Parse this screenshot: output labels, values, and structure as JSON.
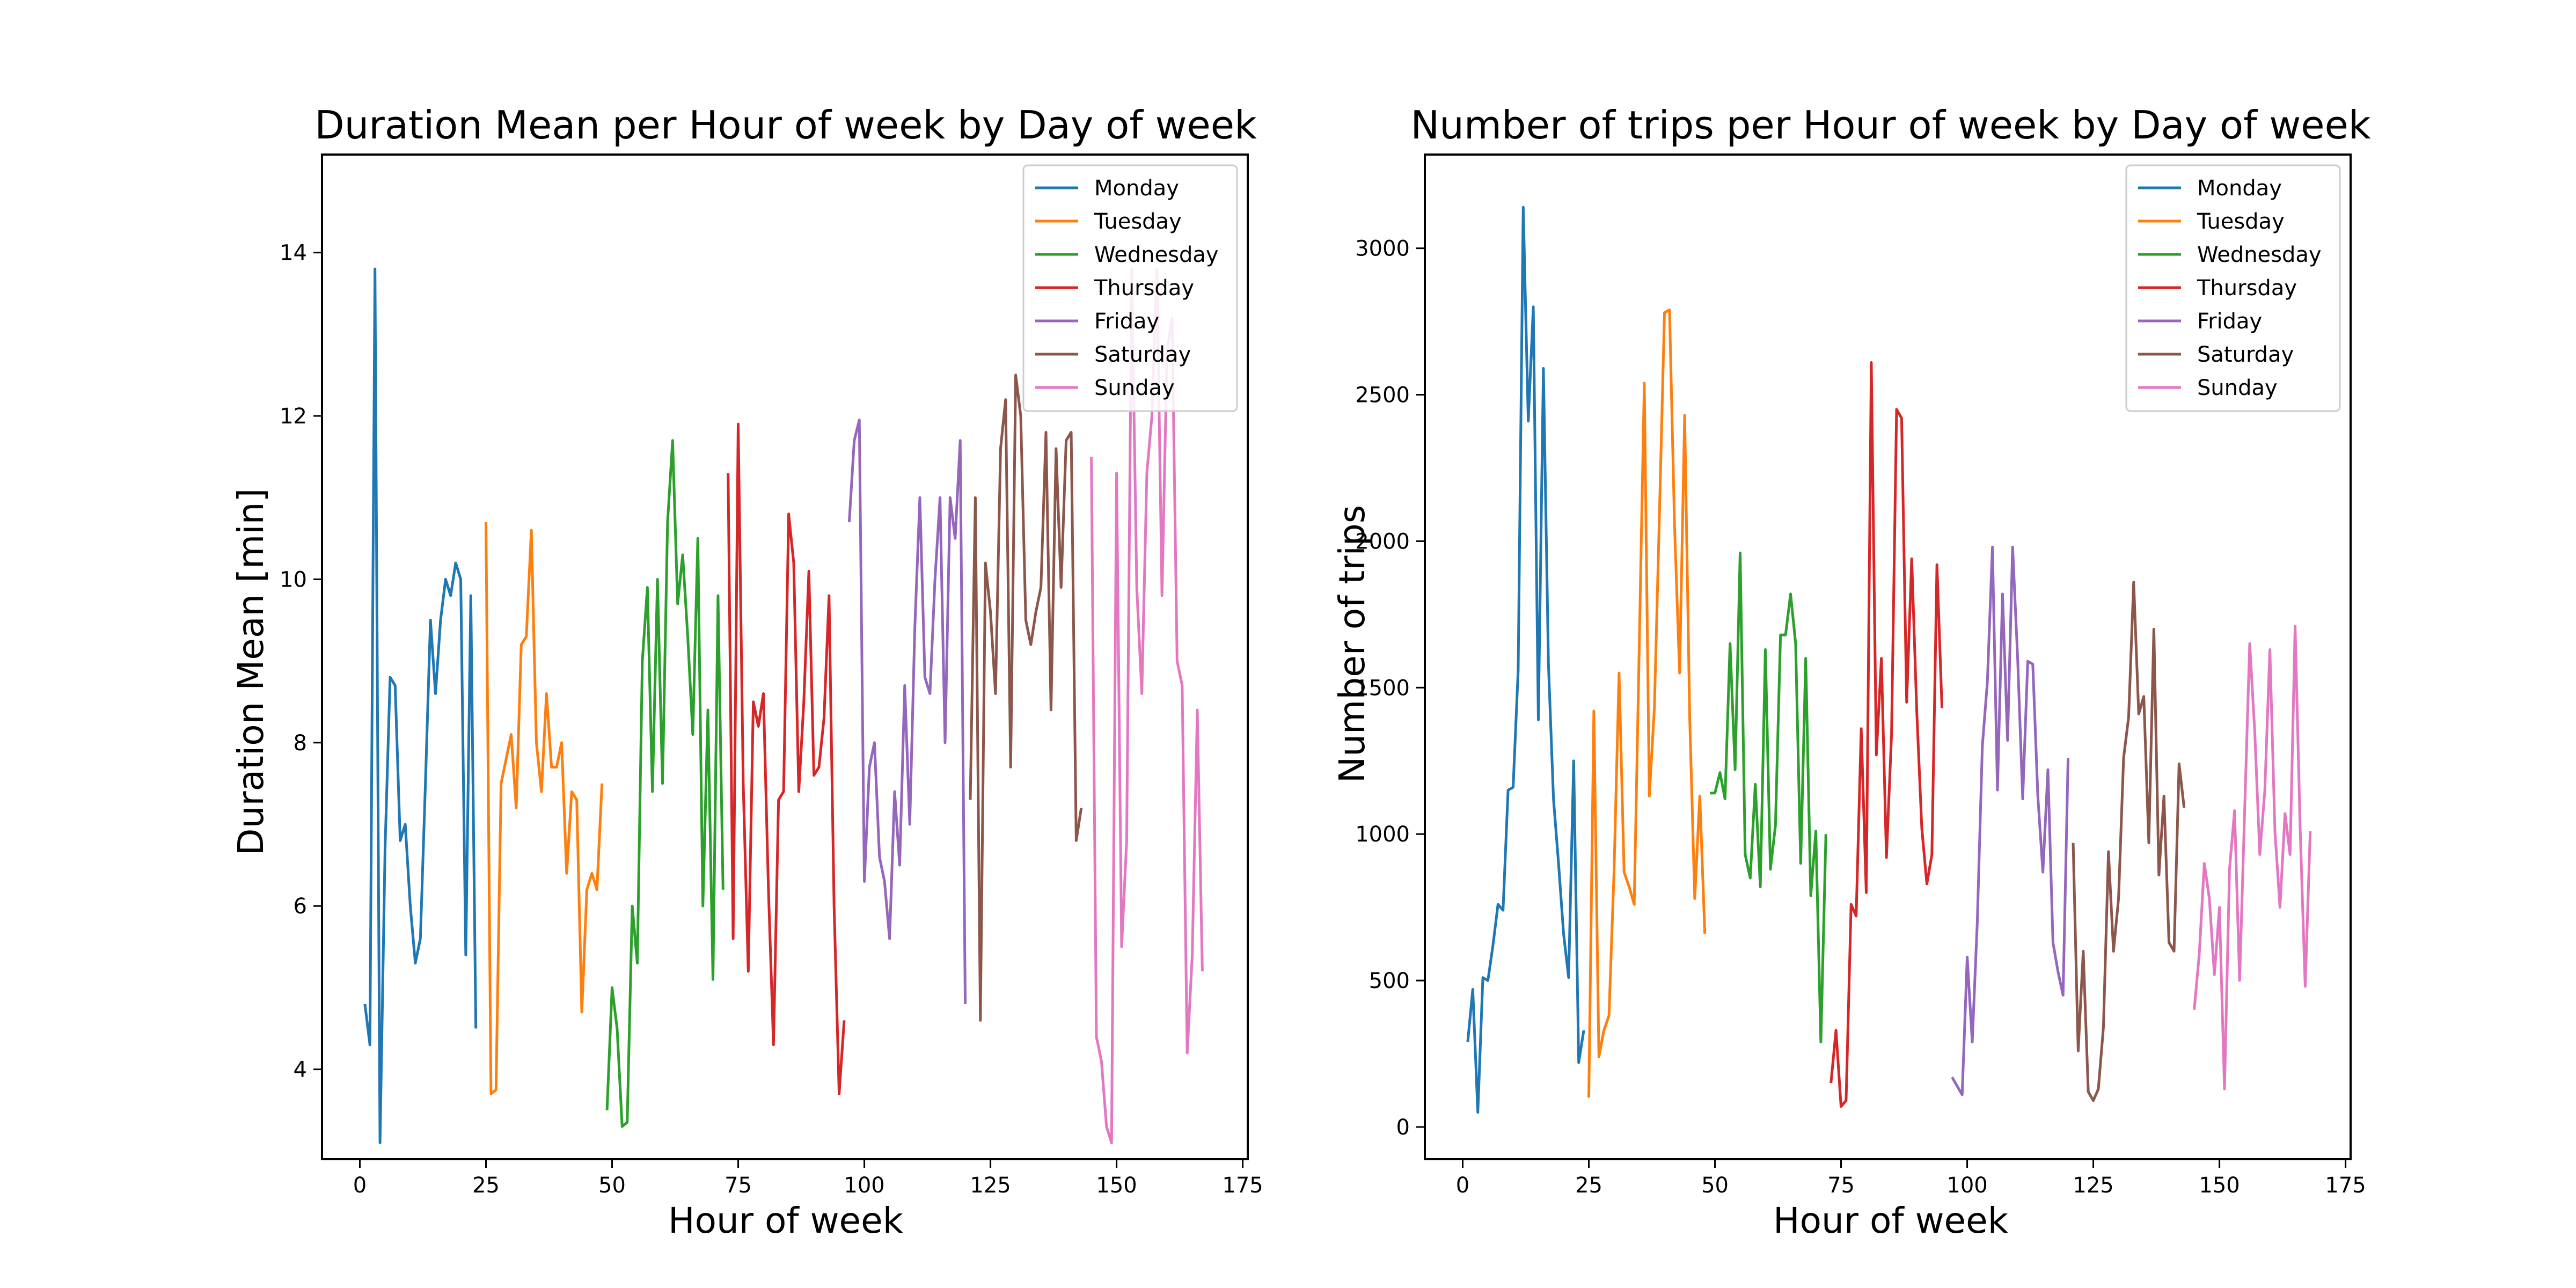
{
  "chart_data": [
    {
      "type": "line",
      "title": "Duration Mean per Hour of week by Day of week",
      "xlabel": "Hour of week",
      "ylabel": "Duration Mean [min]",
      "xlim": [
        -7.5,
        176
      ],
      "ylim": [
        2.9,
        15.2
      ],
      "xticks": [
        0,
        25,
        50,
        75,
        100,
        125,
        150,
        175
      ],
      "yticks": [
        4,
        6,
        8,
        10,
        12,
        14
      ],
      "grid": false,
      "legend_position": "top-right",
      "series": [
        {
          "name": "Monday",
          "color": "#1f77b4",
          "x": [
            1,
            2,
            3,
            4,
            5,
            6,
            7,
            8,
            9,
            10,
            11,
            12,
            13,
            14,
            15,
            16,
            17,
            18,
            19,
            20,
            21,
            22,
            23,
            24
          ],
          "y": [
            4.8,
            4.3,
            13.8,
            3.1,
            6.7,
            8.8,
            8.7,
            6.8,
            7.0,
            6.0,
            5.3,
            5.6,
            7.5,
            9.5,
            8.6,
            9.5,
            10.0,
            9.8,
            10.2,
            10.0,
            5.4,
            9.8,
            4.5,
            null
          ]
        },
        {
          "name": "Tuesday",
          "color": "#ff7f0e",
          "x": [
            25,
            26,
            27,
            28,
            29,
            30,
            31,
            32,
            33,
            34,
            35,
            36,
            37,
            38,
            39,
            40,
            41,
            42,
            43,
            44,
            45,
            46,
            47,
            48
          ],
          "y": [
            10.7,
            3.7,
            3.75,
            7.5,
            7.8,
            8.1,
            7.2,
            9.2,
            9.3,
            10.6,
            8.0,
            7.4,
            8.6,
            7.7,
            7.7,
            8.0,
            6.4,
            7.4,
            7.3,
            4.7,
            6.2,
            6.4,
            6.2,
            7.5
          ]
        },
        {
          "name": "Wednesday",
          "color": "#2ca02c",
          "x": [
            49,
            50,
            51,
            52,
            53,
            54,
            55,
            56,
            57,
            58,
            59,
            60,
            61,
            62,
            63,
            64,
            65,
            66,
            67,
            68,
            69,
            70,
            71,
            72
          ],
          "y": [
            3.5,
            5.0,
            4.5,
            3.3,
            3.35,
            6.0,
            5.3,
            9.0,
            9.9,
            7.4,
            10.0,
            7.5,
            10.7,
            11.7,
            9.7,
            10.3,
            9.3,
            8.1,
            10.5,
            6.0,
            8.4,
            5.1,
            9.8,
            6.2
          ]
        },
        {
          "name": "Thursday",
          "color": "#d62728",
          "x": [
            73,
            74,
            75,
            76,
            77,
            78,
            79,
            80,
            81,
            82,
            83,
            84,
            85,
            86,
            87,
            88,
            89,
            90,
            91,
            92,
            93,
            94,
            95,
            96
          ],
          "y": [
            11.3,
            5.6,
            11.9,
            7.5,
            5.2,
            8.5,
            8.2,
            8.6,
            6.2,
            4.3,
            7.3,
            7.4,
            10.8,
            10.2,
            7.4,
            8.5,
            10.1,
            7.6,
            7.7,
            8.3,
            9.8,
            6.0,
            3.7,
            4.6
          ]
        },
        {
          "name": "Friday",
          "color": "#9467bd",
          "x": [
            97,
            98,
            99,
            100,
            101,
            102,
            103,
            104,
            105,
            106,
            107,
            108,
            109,
            110,
            111,
            112,
            113,
            114,
            115,
            116,
            117,
            118,
            119,
            120
          ],
          "y": [
            10.7,
            11.7,
            11.95,
            6.3,
            7.7,
            8.0,
            6.6,
            6.3,
            5.6,
            7.4,
            6.5,
            8.7,
            7.0,
            9.4,
            11.0,
            8.8,
            8.6,
            10.0,
            11.0,
            8.0,
            11.0,
            10.5,
            11.7,
            4.8
          ]
        },
        {
          "name": "Saturday",
          "color": "#8c564b",
          "x": [
            121,
            122,
            123,
            124,
            125,
            126,
            127,
            128,
            129,
            130,
            131,
            132,
            133,
            134,
            135,
            136,
            137,
            138,
            139,
            140,
            141,
            142,
            143,
            144
          ],
          "y": [
            7.3,
            11.0,
            4.6,
            10.2,
            9.6,
            8.6,
            11.6,
            12.2,
            7.7,
            12.5,
            12.0,
            9.5,
            9.2,
            9.6,
            9.9,
            11.8,
            8.4,
            11.6,
            9.9,
            11.7,
            11.8,
            6.8,
            7.2,
            null
          ]
        },
        {
          "name": "Sunday",
          "color": "#e377c2",
          "x": [
            145,
            146,
            147,
            148,
            149,
            150,
            151,
            152,
            153,
            154,
            155,
            156,
            157,
            158,
            159,
            160,
            161,
            162,
            163,
            164,
            165,
            166,
            167,
            168
          ],
          "y": [
            11.5,
            4.4,
            4.1,
            3.3,
            3.1,
            11.3,
            5.5,
            6.8,
            13.8,
            9.9,
            8.6,
            11.3,
            12.0,
            13.8,
            9.8,
            12.8,
            13.2,
            9.0,
            8.7,
            4.2,
            5.4,
            8.4,
            5.2,
            null
          ]
        }
      ]
    },
    {
      "type": "line",
      "title": "Number of trips per Hour of week by Day of week",
      "xlabel": "Hour of week",
      "ylabel": "Number of trips",
      "xlim": [
        -7.5,
        176
      ],
      "ylim": [
        -110,
        3320
      ],
      "xticks": [
        0,
        25,
        50,
        75,
        100,
        125,
        150,
        175
      ],
      "yticks": [
        0,
        500,
        1000,
        1500,
        2000,
        2500,
        3000
      ],
      "grid": false,
      "legend_position": "top-right",
      "series": [
        {
          "name": "Monday",
          "color": "#1f77b4",
          "x": [
            1,
            2,
            3,
            4,
            5,
            6,
            7,
            8,
            9,
            10,
            11,
            12,
            13,
            14,
            15,
            16,
            17,
            18,
            19,
            20,
            21,
            22,
            23,
            24
          ],
          "y": [
            290,
            470,
            50,
            510,
            500,
            620,
            760,
            740,
            1150,
            1160,
            1560,
            3140,
            2410,
            2800,
            1390,
            2590,
            1580,
            1120,
            900,
            660,
            510,
            1250,
            220,
            330
          ]
        },
        {
          "name": "Tuesday",
          "color": "#ff7f0e",
          "x": [
            25,
            26,
            27,
            28,
            29,
            30,
            31,
            32,
            33,
            34,
            35,
            36,
            37,
            38,
            39,
            40,
            41,
            42,
            43,
            44,
            45,
            46,
            47,
            48
          ],
          "y": [
            100,
            1420,
            240,
            330,
            380,
            870,
            1550,
            870,
            820,
            760,
            1640,
            2540,
            1130,
            1430,
            2090,
            2780,
            2790,
            2050,
            1550,
            2430,
            1400,
            780,
            1130,
            660
          ]
        },
        {
          "name": "Wednesday",
          "color": "#2ca02c",
          "x": [
            49,
            50,
            51,
            52,
            53,
            54,
            55,
            56,
            57,
            58,
            59,
            60,
            61,
            62,
            63,
            64,
            65,
            66,
            67,
            68,
            69,
            70,
            71,
            72
          ],
          "y": [
            1140,
            1140,
            1210,
            1120,
            1650,
            1220,
            1960,
            930,
            850,
            1170,
            820,
            1630,
            880,
            1030,
            1680,
            1680,
            1820,
            1650,
            900,
            1600,
            790,
            1010,
            290,
            1000
          ]
        },
        {
          "name": "Thursday",
          "color": "#d62728",
          "x": [
            73,
            74,
            75,
            76,
            77,
            78,
            79,
            80,
            81,
            82,
            83,
            84,
            85,
            86,
            87,
            88,
            89,
            90,
            91,
            92,
            93,
            94,
            95,
            96
          ],
          "y": [
            150,
            330,
            70,
            90,
            760,
            720,
            1360,
            800,
            2610,
            1270,
            1600,
            920,
            1340,
            2450,
            2420,
            1450,
            1940,
            1420,
            1020,
            830,
            930,
            1920,
            1430,
            null
          ]
        },
        {
          "name": "Friday",
          "color": "#9467bd",
          "x": [
            97,
            98,
            99,
            100,
            101,
            102,
            103,
            104,
            105,
            106,
            107,
            108,
            109,
            110,
            111,
            112,
            113,
            114,
            115,
            116,
            117,
            118,
            119,
            120
          ],
          "y": [
            170,
            140,
            110,
            580,
            290,
            700,
            1300,
            1520,
            1980,
            1150,
            1820,
            1320,
            1980,
            1600,
            1120,
            1590,
            1580,
            1130,
            870,
            1220,
            630,
            530,
            450,
            1260
          ]
        },
        {
          "name": "Saturday",
          "color": "#8c564b",
          "x": [
            121,
            122,
            123,
            124,
            125,
            126,
            127,
            128,
            129,
            130,
            131,
            132,
            133,
            134,
            135,
            136,
            137,
            138,
            139,
            140,
            141,
            142,
            143,
            144
          ],
          "y": [
            970,
            260,
            600,
            120,
            90,
            130,
            340,
            940,
            600,
            780,
            1260,
            1400,
            1860,
            1410,
            1470,
            970,
            1700,
            860,
            1130,
            630,
            600,
            1240,
            1090,
            null
          ]
        },
        {
          "name": "Sunday",
          "color": "#e377c2",
          "x": [
            145,
            146,
            147,
            148,
            149,
            150,
            151,
            152,
            153,
            154,
            155,
            156,
            157,
            158,
            159,
            160,
            161,
            162,
            163,
            164,
            165,
            166,
            167,
            168
          ],
          "y": [
            400,
            590,
            900,
            780,
            520,
            750,
            130,
            880,
            1080,
            500,
            1080,
            1650,
            1350,
            930,
            1150,
            1630,
            1010,
            750,
            1070,
            930,
            1710,
            1020,
            480,
            1010
          ]
        }
      ]
    }
  ]
}
